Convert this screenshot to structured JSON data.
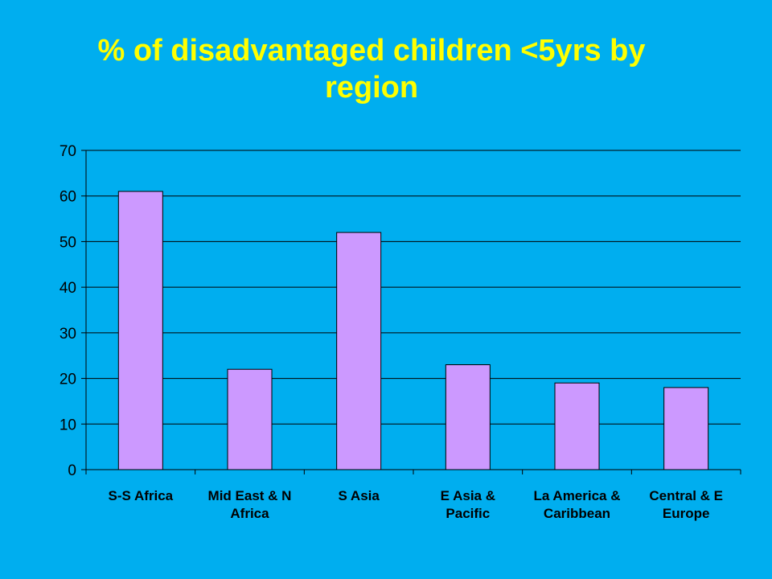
{
  "title_lines": [
    "% of  disadvantaged children <5yrs by",
    "region"
  ],
  "colors": {
    "background": "#00AEEF",
    "title": "#FFFF00",
    "bar_fill": "#CC99FF",
    "bar_stroke": "#000000",
    "gridline": "#000000"
  },
  "chart_data": {
    "type": "bar",
    "categories": [
      [
        "S-S Africa"
      ],
      [
        "Mid East & N",
        "Africa"
      ],
      [
        "S Asia"
      ],
      [
        "E Asia &",
        "Pacific"
      ],
      [
        "La America &",
        "Caribbean"
      ],
      [
        "Central & E",
        "Europe"
      ]
    ],
    "values": [
      61,
      22,
      52,
      23,
      19,
      18
    ],
    "ylim": [
      0,
      70
    ],
    "yticks": [
      0,
      10,
      20,
      30,
      40,
      50,
      60,
      70
    ],
    "grid": true,
    "legend": "none"
  }
}
